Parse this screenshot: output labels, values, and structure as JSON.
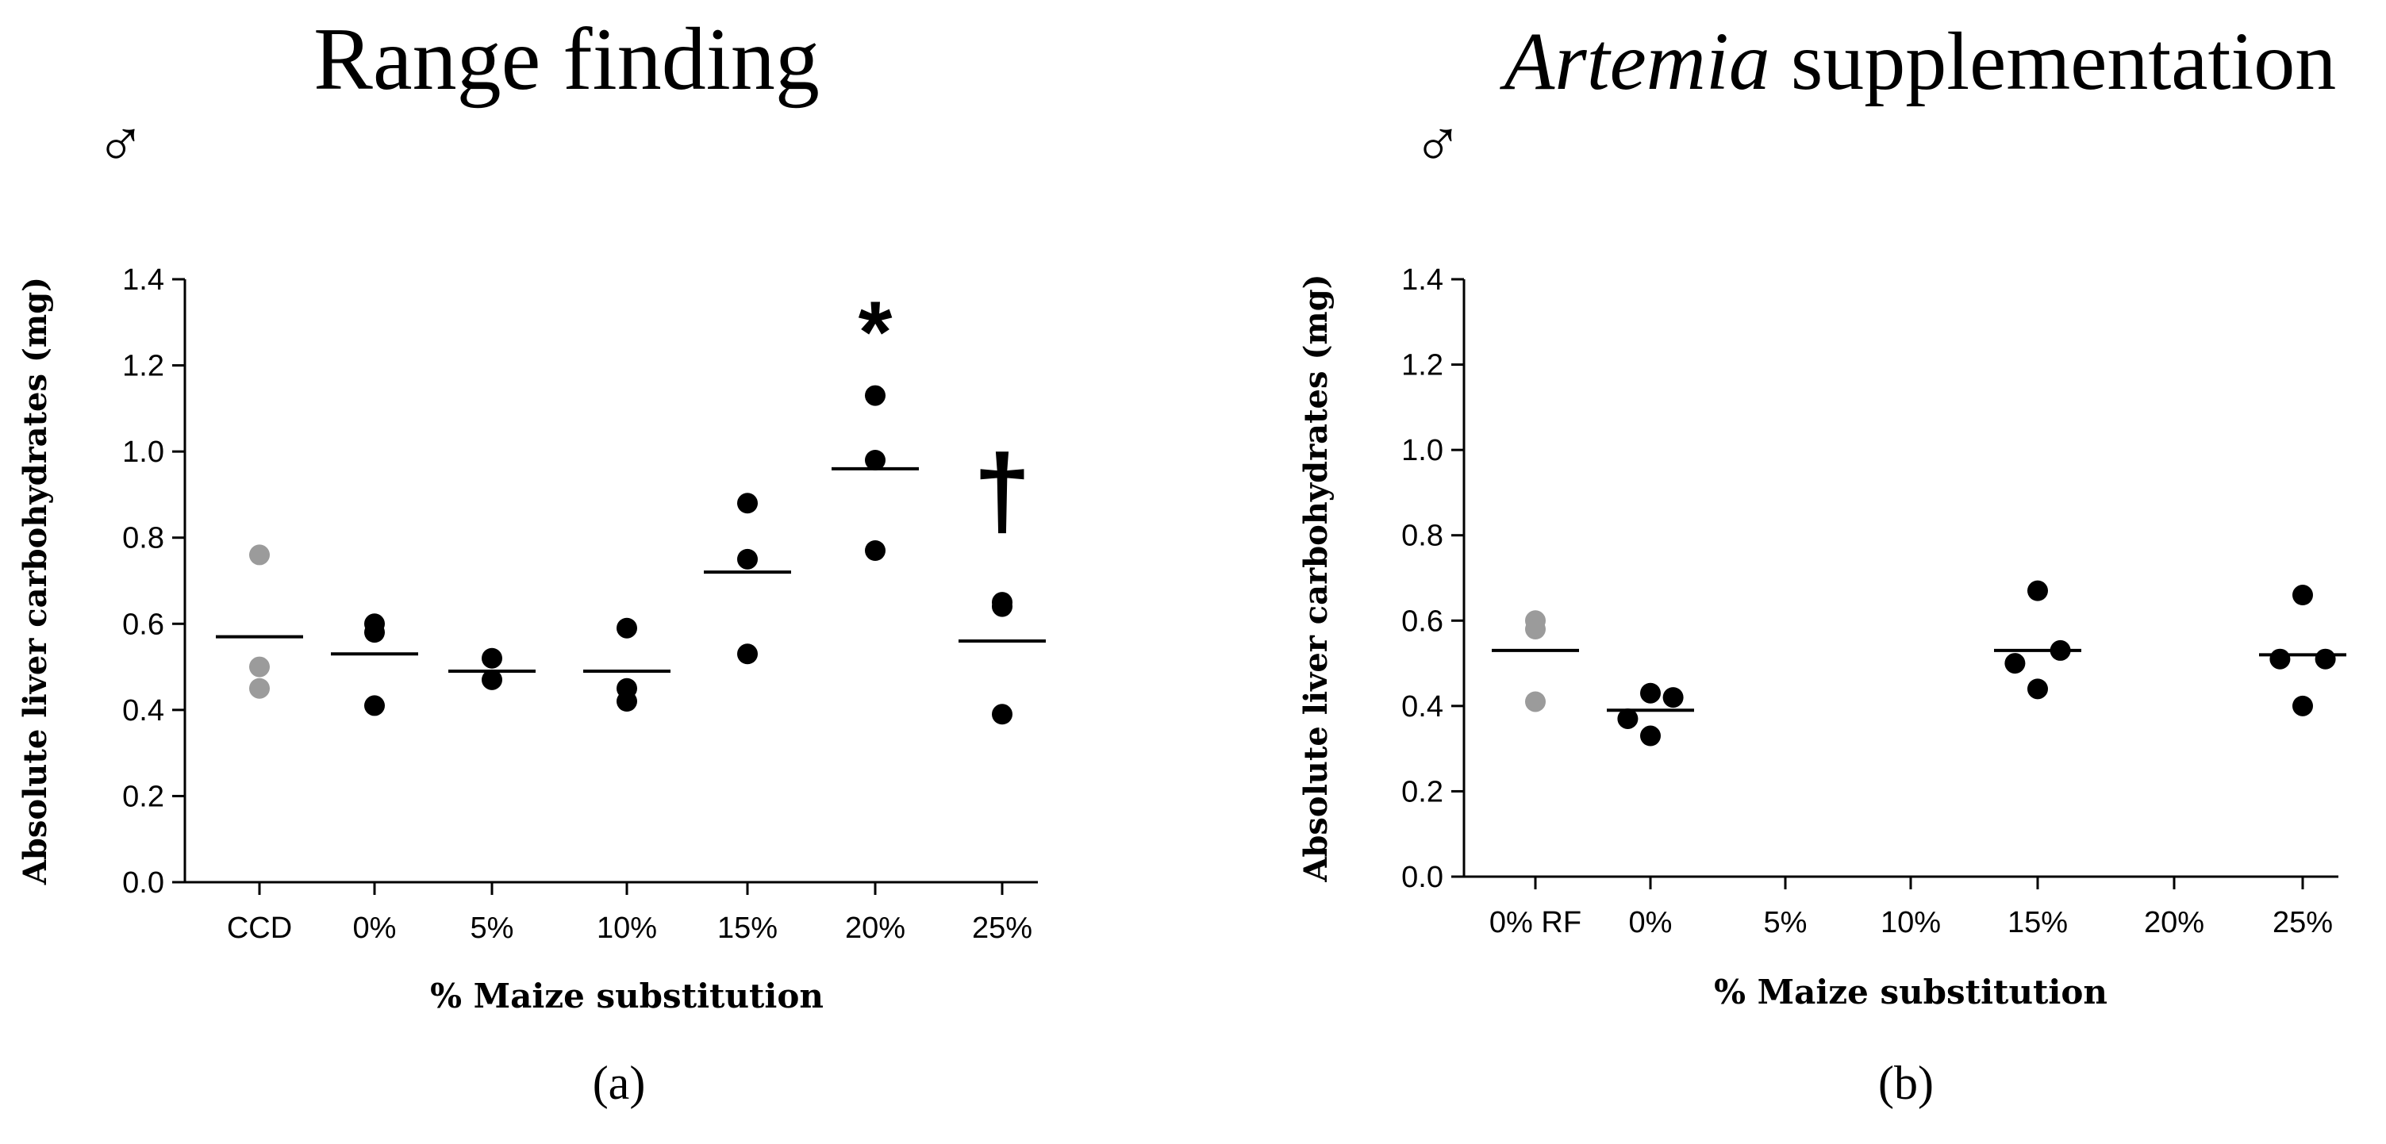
{
  "chart_data": [
    {
      "type": "scatter",
      "panel_label": "(a)",
      "title": "Range finding",
      "title_italic": "",
      "title_rest": "Range finding",
      "sex_symbol": "♂",
      "xlabel": "% Maize substitution",
      "ylabel": "Absolute liver carbohydrates (mg)",
      "ylim": [
        0,
        1.4
      ],
      "yticks": [
        0.0,
        0.2,
        0.4,
        0.6,
        0.8,
        1.0,
        1.2,
        1.4
      ],
      "ytick_labels": [
        "0.0",
        "0.2",
        "0.4",
        "0.6",
        "0.8",
        "1.0",
        "1.2",
        "1.4"
      ],
      "categories": [
        "CCD",
        "0%",
        "5%",
        "10%",
        "15%",
        "20%",
        "25%"
      ],
      "groups": [
        {
          "category": "CCD",
          "color": "#9b9b9b",
          "points": [
            0.76,
            0.5,
            0.45
          ],
          "mean": 0.57,
          "annotation": ""
        },
        {
          "category": "0%",
          "color": "#000000",
          "points": [
            0.6,
            0.58,
            0.41
          ],
          "mean": 0.53,
          "annotation": ""
        },
        {
          "category": "5%",
          "color": "#000000",
          "points": [
            0.52,
            0.47
          ],
          "mean": 0.49,
          "annotation": ""
        },
        {
          "category": "10%",
          "color": "#000000",
          "points": [
            0.59,
            0.45,
            0.42
          ],
          "mean": 0.49,
          "annotation": ""
        },
        {
          "category": "15%",
          "color": "#000000",
          "points": [
            0.88,
            0.75,
            0.53
          ],
          "mean": 0.72,
          "annotation": ""
        },
        {
          "category": "20%",
          "color": "#000000",
          "points": [
            1.13,
            0.98,
            0.77
          ],
          "mean": 0.96,
          "annotation": "*"
        },
        {
          "category": "25%",
          "color": "#000000",
          "points": [
            0.65,
            0.64,
            0.39
          ],
          "mean": 0.56,
          "annotation": "†"
        }
      ]
    },
    {
      "type": "scatter",
      "panel_label": "(b)",
      "title": "Artemia supplementation",
      "title_italic": "Artemia",
      "title_rest": " supplementation",
      "sex_symbol": "♂",
      "xlabel": "% Maize substitution",
      "ylabel": "Absolute liver carbohydrates (mg)",
      "ylim": [
        0,
        1.4
      ],
      "yticks": [
        0.0,
        0.2,
        0.4,
        0.6,
        0.8,
        1.0,
        1.2,
        1.4
      ],
      "ytick_labels": [
        "0.0",
        "0.2",
        "0.4",
        "0.6",
        "0.8",
        "1.0",
        "1.2",
        "1.4"
      ],
      "categories": [
        "0% RF",
        "0%",
        "5%",
        "10%",
        "15%",
        "20%",
        "25%"
      ],
      "groups": [
        {
          "category": "0% RF",
          "color": "#9b9b9b",
          "points": [
            0.6,
            0.58,
            0.41
          ],
          "mean": 0.53,
          "annotation": ""
        },
        {
          "category": "0%",
          "color": "#000000",
          "points": [
            0.43,
            0.42,
            0.37,
            0.33
          ],
          "mean": 0.39,
          "annotation": ""
        },
        {
          "category": "5%",
          "color": "#000000",
          "points": [],
          "mean": null,
          "annotation": ""
        },
        {
          "category": "10%",
          "color": "#000000",
          "points": [],
          "mean": null,
          "annotation": ""
        },
        {
          "category": "15%",
          "color": "#000000",
          "points": [
            0.67,
            0.53,
            0.5,
            0.44
          ],
          "mean": 0.53,
          "annotation": ""
        },
        {
          "category": "20%",
          "color": "#000000",
          "points": [],
          "mean": null,
          "annotation": ""
        },
        {
          "category": "25%",
          "color": "#000000",
          "points": [
            0.66,
            0.51,
            0.51,
            0.4
          ],
          "mean": 0.52,
          "annotation": ""
        }
      ]
    }
  ]
}
